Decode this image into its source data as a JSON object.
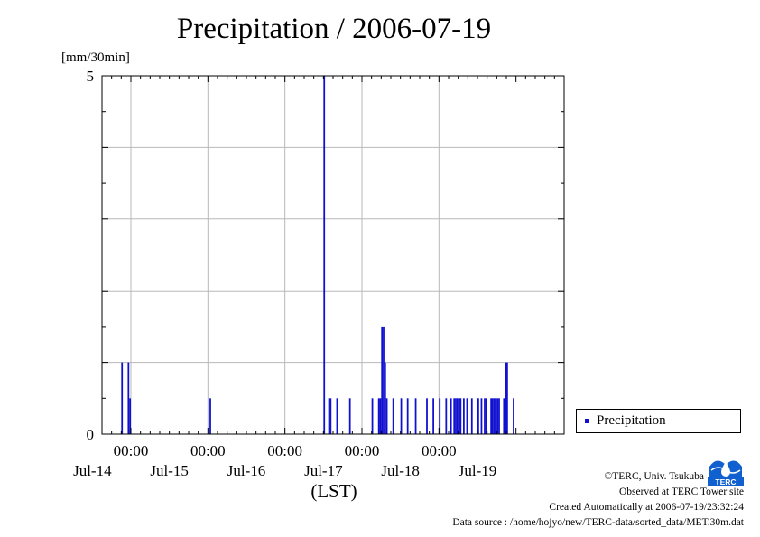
{
  "chart_data": {
    "type": "bar",
    "title": "Precipitation / 2006-07-19",
    "ylabel": "[mm/30min]",
    "xlabel": "(LST)",
    "ylim": [
      0,
      5
    ],
    "yticks": [
      0,
      5
    ],
    "x_time_range": [
      "2006-07-13 15:00",
      "2006-07-19 15:00"
    ],
    "x_ticks": [
      "00:00",
      "00:00",
      "00:00",
      "00:00",
      "00:00"
    ],
    "x_tick_times": [
      "2006-07-14 00:00",
      "2006-07-15 00:00",
      "2006-07-16 00:00",
      "2006-07-17 00:00",
      "2006-07-18 00:00"
    ],
    "x_date_labels": [
      "Jul-14",
      "Jul-15",
      "Jul-16",
      "Jul-17",
      "Jul-18",
      "Jul-19"
    ],
    "x_date_label_times": [
      "2006-07-13 12:00",
      "2006-07-14 12:00",
      "2006-07-15 12:00",
      "2006-07-16 12:00",
      "2006-07-17 12:00",
      "2006-07-18 12:00"
    ],
    "grid": true,
    "legend_position": "right",
    "series": [
      {
        "name": "Precipitation",
        "color": "#1010d0",
        "points": [
          [
            "2006-07-13 21:30",
            1.0
          ],
          [
            "2006-07-13 23:30",
            1.0
          ],
          [
            "2006-07-14 00:00",
            0.5
          ],
          [
            "2006-07-15 01:00",
            0.5
          ],
          [
            "2006-07-16 12:30",
            5.0
          ],
          [
            "2006-07-16 14:00",
            0.5
          ],
          [
            "2006-07-16 14:30",
            0.5
          ],
          [
            "2006-07-16 16:30",
            0.5
          ],
          [
            "2006-07-16 20:30",
            0.5
          ],
          [
            "2006-07-17 03:30",
            0.5
          ],
          [
            "2006-07-17 05:30",
            0.5
          ],
          [
            "2006-07-17 06:00",
            0.5
          ],
          [
            "2006-07-17 06:30",
            1.5
          ],
          [
            "2006-07-17 07:00",
            1.5
          ],
          [
            "2006-07-17 07:30",
            1.0
          ],
          [
            "2006-07-17 08:00",
            0.5
          ],
          [
            "2006-07-17 10:00",
            0.5
          ],
          [
            "2006-07-17 12:30",
            0.5
          ],
          [
            "2006-07-17 14:30",
            0.5
          ],
          [
            "2006-07-17 17:00",
            0.5
          ],
          [
            "2006-07-17 20:30",
            0.5
          ],
          [
            "2006-07-17 22:30",
            0.5
          ],
          [
            "2006-07-18 00:30",
            0.5
          ],
          [
            "2006-07-18 02:30",
            0.5
          ],
          [
            "2006-07-18 04:00",
            0.5
          ],
          [
            "2006-07-18 05:00",
            0.5
          ],
          [
            "2006-07-18 05:30",
            0.5
          ],
          [
            "2006-07-18 06:00",
            0.5
          ],
          [
            "2006-07-18 06:30",
            0.5
          ],
          [
            "2006-07-18 07:00",
            0.5
          ],
          [
            "2006-07-18 08:00",
            0.5
          ],
          [
            "2006-07-18 09:00",
            0.5
          ],
          [
            "2006-07-18 10:30",
            0.5
          ],
          [
            "2006-07-18 12:30",
            0.5
          ],
          [
            "2006-07-18 13:30",
            0.5
          ],
          [
            "2006-07-18 14:30",
            0.5
          ],
          [
            "2006-07-18 15:00",
            0.5
          ],
          [
            "2006-07-18 16:30",
            0.5
          ],
          [
            "2006-07-18 17:00",
            0.5
          ],
          [
            "2006-07-18 17:30",
            0.5
          ],
          [
            "2006-07-18 18:00",
            0.5
          ],
          [
            "2006-07-18 18:30",
            0.5
          ],
          [
            "2006-07-18 19:00",
            0.5
          ],
          [
            "2006-07-18 20:30",
            0.5
          ],
          [
            "2006-07-18 21:00",
            1.0
          ],
          [
            "2006-07-18 21:30",
            1.0
          ],
          [
            "2006-07-18 23:30",
            0.5
          ]
        ]
      }
    ]
  },
  "legend": {
    "label": "Precipitation"
  },
  "credits": {
    "copyright": "©TERC, Univ. Tsukuba",
    "observed": "Observed at TERC Tower site",
    "created": "Created Automatically at 2006-07-19/23:32:24",
    "source": "Data source : /home/hojyo/new/TERC-data/sorted_data/MET.30m.dat"
  },
  "logo": {
    "text": "TERC",
    "color": "#1060d0"
  }
}
